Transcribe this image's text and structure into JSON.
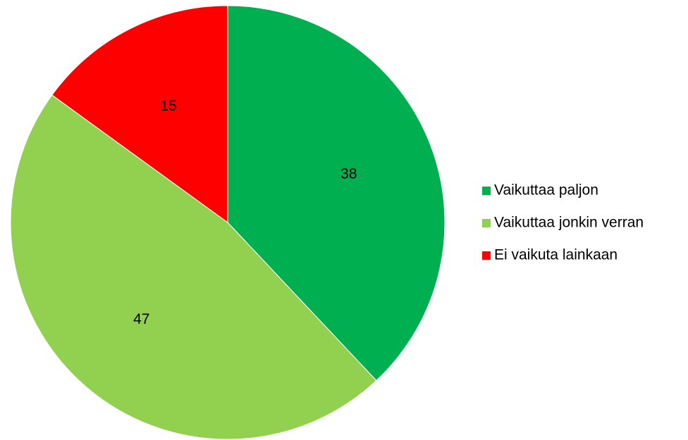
{
  "chart_data": {
    "type": "pie",
    "categories": [
      "Vaikuttaa paljon",
      "Vaikuttaa jonkin verran",
      "Ei vaikuta lainkaan"
    ],
    "values": [
      38,
      47,
      15
    ],
    "colors": [
      "#00b050",
      "#92d050",
      "#ff0000"
    ],
    "legend": "right"
  }
}
